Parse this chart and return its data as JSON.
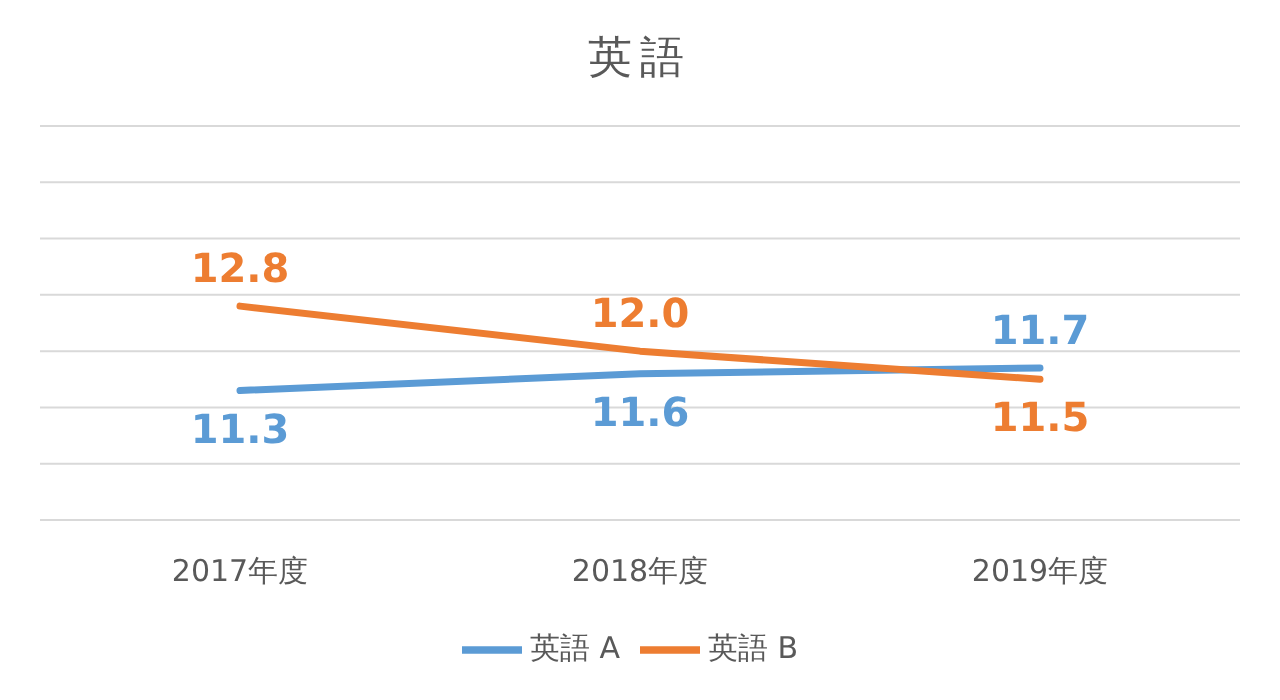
{
  "chart_data": {
    "type": "line",
    "title": "英語",
    "categories": [
      "2017年度",
      "2018年度",
      "2019年度"
    ],
    "series": [
      {
        "name": "英語 A",
        "color": "#5b9bd5",
        "values": [
          11.3,
          11.6,
          11.7
        ],
        "value_labels": [
          "11.3",
          "11.6",
          "11.7"
        ]
      },
      {
        "name": "英語 B",
        "color": "#ed7d31",
        "values": [
          12.8,
          12.0,
          11.5
        ],
        "value_labels": [
          "12.8",
          "12.0",
          "11.5"
        ]
      }
    ],
    "ylim": [
      9,
      16
    ],
    "tick_labels": "x",
    "grid": "y",
    "legend": "bottom",
    "marker": "none",
    "line_style": "solid"
  }
}
